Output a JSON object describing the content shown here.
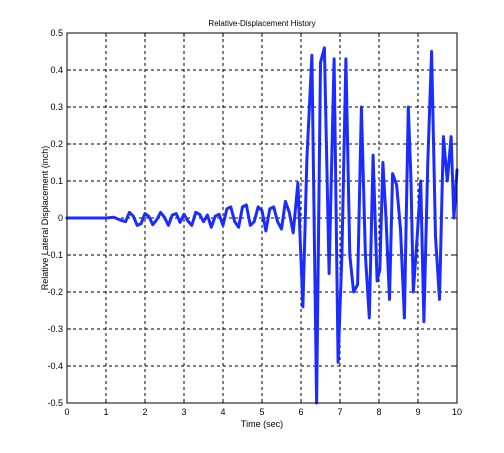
{
  "chart_data": {
    "type": "line",
    "title": "Relative-Displacement History",
    "xlabel": "Time (sec)",
    "ylabel": "Relative Lateral Displacement (inch)",
    "xlim": [
      0,
      10
    ],
    "ylim": [
      -0.5,
      0.5
    ],
    "xticks": [
      "0",
      "1",
      "2",
      "3",
      "4",
      "5",
      "6",
      "7",
      "8",
      "9",
      "10"
    ],
    "yticks": [
      "0.5",
      "0.4",
      "0.3",
      "0.2",
      "0.1",
      "0",
      "-0.1",
      "-0.2",
      "-0.3",
      "-0.4",
      "-0.5"
    ],
    "grid": true,
    "series": [
      {
        "color": "#1a2cff",
        "x": [
          0,
          1.0,
          1.2,
          1.35,
          1.5,
          1.6,
          1.7,
          1.8,
          1.9,
          2.0,
          2.1,
          2.2,
          2.3,
          2.4,
          2.5,
          2.6,
          2.7,
          2.8,
          2.9,
          3.0,
          3.1,
          3.2,
          3.3,
          3.4,
          3.5,
          3.6,
          3.7,
          3.8,
          3.9,
          4.0,
          4.1,
          4.2,
          4.3,
          4.4,
          4.5,
          4.6,
          4.7,
          4.8,
          4.9,
          5.0,
          5.1,
          5.2,
          5.3,
          5.4,
          5.5,
          5.6,
          5.7,
          5.8,
          5.92,
          6.05,
          6.15,
          6.28,
          6.4,
          6.5,
          6.6,
          6.72,
          6.85,
          6.95,
          7.05,
          7.15,
          7.25,
          7.35,
          7.45,
          7.55,
          7.65,
          7.75,
          7.85,
          7.95,
          8.02,
          8.1,
          8.18,
          8.27,
          8.35,
          8.45,
          8.55,
          8.65,
          8.75,
          8.82,
          8.88,
          8.98,
          9.07,
          9.15,
          9.25,
          9.35,
          9.45,
          9.55,
          9.65,
          9.75,
          9.85,
          9.92,
          10.0
        ],
        "y": [
          0,
          0,
          0.002,
          -0.005,
          -0.01,
          0.015,
          0.005,
          -0.02,
          -0.015,
          0.012,
          0.004,
          -0.018,
          -0.005,
          0.015,
          0.002,
          -0.02,
          0.008,
          0.012,
          -0.012,
          0.01,
          -0.008,
          -0.02,
          0.015,
          0.01,
          -0.01,
          0.008,
          -0.025,
          0.005,
          0.01,
          -0.02,
          0.025,
          0.03,
          -0.01,
          -0.025,
          0.03,
          0.035,
          -0.02,
          -0.01,
          0.03,
          0.02,
          -0.035,
          0.025,
          0.03,
          -0.01,
          -0.03,
          0.045,
          0.015,
          -0.04,
          0.095,
          -0.24,
          0.16,
          0.44,
          -0.5,
          0.42,
          0.46,
          -0.15,
          0.43,
          -0.39,
          -0.1,
          0.43,
          -0.1,
          -0.2,
          -0.18,
          0.3,
          -0.1,
          -0.27,
          0.17,
          -0.17,
          -0.14,
          0.15,
          0.0,
          -0.22,
          0.12,
          0.09,
          -0.03,
          -0.27,
          0.3,
          0.1,
          -0.2,
          -0.05,
          0.1,
          -0.28,
          0.15,
          0.45,
          -0.05,
          -0.22,
          0.22,
          0.1,
          0.22,
          0.0,
          0.13
        ]
      }
    ]
  }
}
